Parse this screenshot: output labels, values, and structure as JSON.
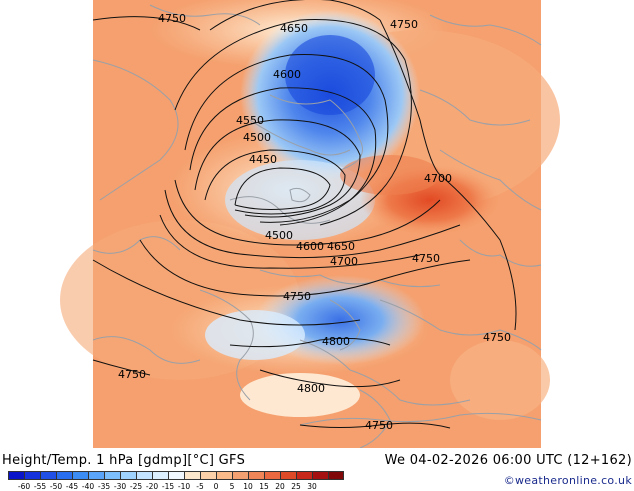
{
  "map": {
    "contour_labels": [
      "4750",
      "4650",
      "4750",
      "4600",
      "4550",
      "4500",
      "4450",
      "4700",
      "4500",
      "4600",
      "4650",
      "4700",
      "4750",
      "4750",
      "4800",
      "4750",
      "4750",
      "4800",
      "4750"
    ]
  },
  "footer": {
    "title": "Height/Temp. 1 hPa [gdmp][°C] GFS",
    "date": "We 04-02-2026 06:00 UTC (12+162)",
    "credit": "©weatheronline.co.uk"
  },
  "colorbar": {
    "ticks": [
      "-60",
      "-55",
      "-50",
      "-45",
      "-40",
      "-35",
      "-30",
      "-25",
      "-20",
      "-15",
      "-10",
      "-5",
      "0",
      "5",
      "10",
      "15",
      "20",
      "25",
      "30"
    ],
    "colors": [
      "#0a14c8",
      "#1632dc",
      "#2050e6",
      "#2a6ef0",
      "#3c8cf5",
      "#5aa5fa",
      "#7dbefd",
      "#a0d2fe",
      "#c3e3ff",
      "#dcefff",
      "#f0f7ff",
      "#fde7cc",
      "#fcd0a8",
      "#faba8a",
      "#f5a070",
      "#f08558",
      "#ea6840",
      "#dc4a28",
      "#c8281a",
      "#a51010",
      "#800808"
    ]
  }
}
